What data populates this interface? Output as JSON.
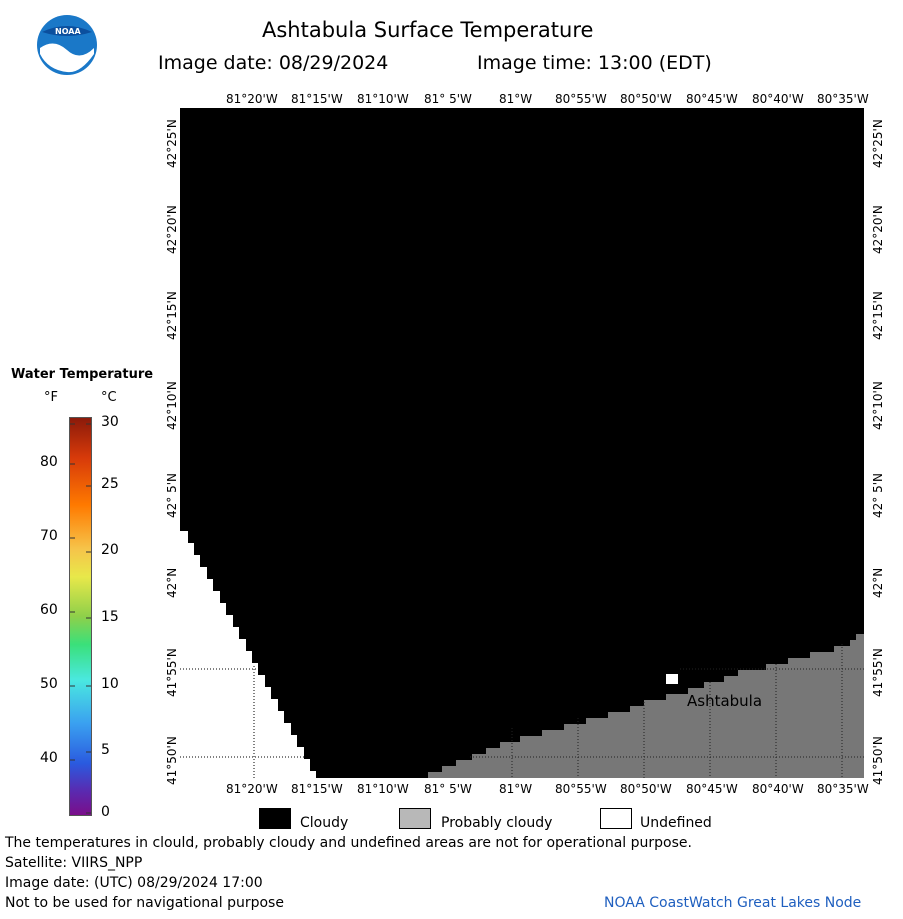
{
  "header": {
    "title": "Ashtabula Surface Temperature",
    "image_date": "Image date: 08/29/2024",
    "image_time": "Image time: 13:00 (EDT)"
  },
  "logo": {
    "text": "NOAA"
  },
  "map": {
    "lon_labels": [
      "81°20'W",
      "81°15'W",
      "81°10'W",
      "81° 5'W",
      "81°W",
      "80°55'W",
      "80°50'W",
      "80°45'W",
      "80°40'W",
      "80°35'W"
    ],
    "lat_labels": [
      "42°25'N",
      "42°20'N",
      "42°15'N",
      "42°10'N",
      "42° 5'N",
      "42°N",
      "41°55'N",
      "41°50'N"
    ],
    "city": "Ashtabula",
    "colors": {
      "cloudy": "#000000",
      "probably_cloudy": "#808080",
      "undefined": "#ffffff"
    }
  },
  "legend": {
    "title": "Water Temperature",
    "unit_f": "°F",
    "unit_c": "°C",
    "f_ticks": [
      "80",
      "70",
      "60",
      "50",
      "40"
    ],
    "c_ticks": [
      "30",
      "25",
      "20",
      "15",
      "10",
      "5",
      "0"
    ]
  },
  "key": {
    "cloudy": "Cloudy",
    "probably_cloudy": "Probably cloudy",
    "undefined": "Undefined"
  },
  "footer": {
    "line1": "The temperatures in clould, probably cloudy and undefined areas are not for operational purpose.",
    "line2": "Satellite: VIIRS_NPP",
    "line3": "Image date: (UTC) 08/29/2024  17:00",
    "line4": "Not to be used for navigational purpose",
    "credit": "NOAA CoastWatch Great Lakes Node"
  }
}
